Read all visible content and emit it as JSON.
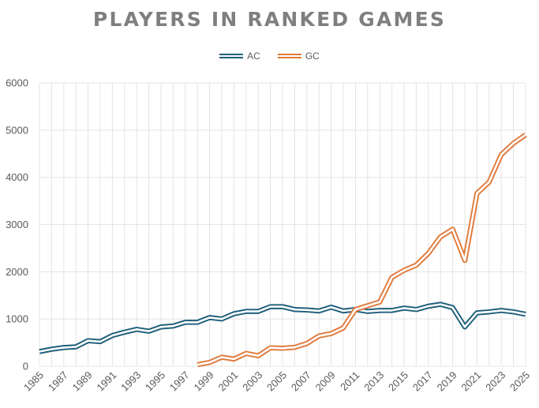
{
  "chart_data": {
    "type": "line",
    "title": "PLAYERS IN RANKED GAMES",
    "xlabel": "",
    "ylabel": "",
    "ylim": [
      0,
      6000
    ],
    "yticks": [
      0,
      1000,
      2000,
      3000,
      4000,
      5000,
      6000
    ],
    "xtick_labels": [
      "1985",
      "1987",
      "1989",
      "1991",
      "1993",
      "1995",
      "1997",
      "1999",
      "2001",
      "2003",
      "2005",
      "2007",
      "2009",
      "2011",
      "2013",
      "2015",
      "2017",
      "2019",
      "2021",
      "2023",
      "2025"
    ],
    "x": [
      1985,
      1986,
      1987,
      1988,
      1989,
      1990,
      1991,
      1992,
      1993,
      1994,
      1995,
      1996,
      1997,
      1998,
      1999,
      2000,
      2001,
      2002,
      2003,
      2004,
      2005,
      2006,
      2007,
      2008,
      2009,
      2010,
      2011,
      2012,
      2013,
      2014,
      2015,
      2016,
      2017,
      2018,
      2019,
      2020,
      2021,
      2022,
      2023,
      2024,
      2025
    ],
    "series": [
      {
        "name": "AC",
        "color": "#1f5f7a",
        "values": [
          310,
          360,
          395,
          410,
          540,
          520,
          650,
          720,
          780,
          740,
          830,
          850,
          930,
          930,
          1030,
          1000,
          1110,
          1160,
          1160,
          1260,
          1260,
          1200,
          1190,
          1170,
          1250,
          1170,
          1200,
          1160,
          1180,
          1180,
          1230,
          1200,
          1270,
          1310,
          1240,
          830,
          1130,
          1150,
          1180,
          1150,
          1100
        ]
      },
      {
        "name": "GC",
        "color": "#e07b3e",
        "values": [
          null,
          null,
          null,
          null,
          null,
          null,
          null,
          null,
          null,
          null,
          null,
          null,
          null,
          30,
          80,
          190,
          150,
          270,
          220,
          390,
          380,
          400,
          480,
          640,
          690,
          810,
          1200,
          1280,
          1360,
          1880,
          2030,
          2140,
          2390,
          2740,
          2900,
          2240,
          3660,
          3900,
          4480,
          4720,
          4900
        ]
      }
    ]
  }
}
